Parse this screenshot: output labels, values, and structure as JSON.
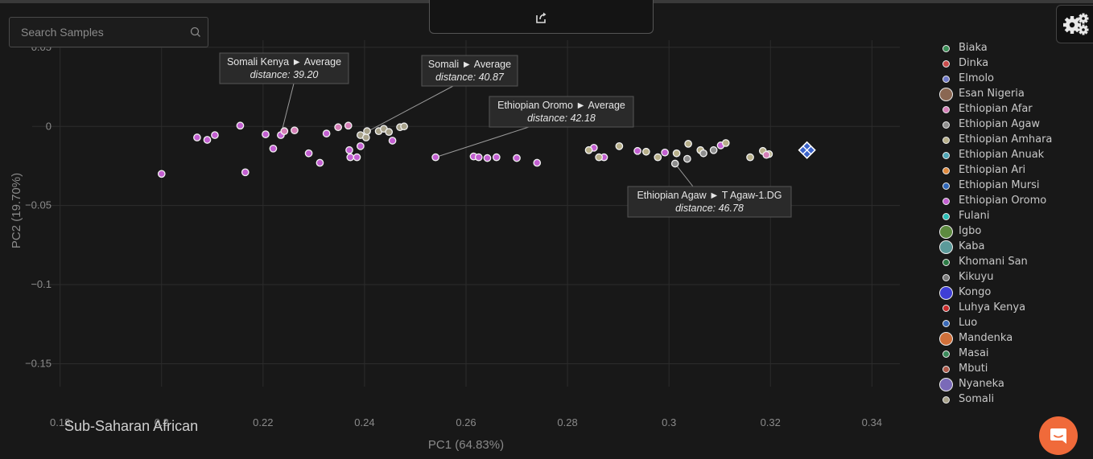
{
  "search": {
    "placeholder": "Search Samples"
  },
  "region_label": "Sub-Saharan African",
  "colors": {
    "background": "#181818",
    "grid": "#2c2c2c",
    "chat_button": "#f06a3a",
    "target_marker": "#3b63c9"
  },
  "chart_data": {
    "type": "scatter",
    "xlabel": "PC1 (64.83%)",
    "ylabel": "PC2 (19.70%)",
    "xlim": [
      0.1745,
      0.3455
    ],
    "ylim": [
      -0.1645,
      0.0545
    ],
    "x_ticks": [
      {
        "v": 0.18,
        "label": "0.18"
      },
      {
        "v": 0.2,
        "label": "0.2"
      },
      {
        "v": 0.22,
        "label": "0.22"
      },
      {
        "v": 0.24,
        "label": "0.24"
      },
      {
        "v": 0.26,
        "label": "0.26"
      },
      {
        "v": 0.28,
        "label": "0.28"
      },
      {
        "v": 0.3,
        "label": "0.3"
      },
      {
        "v": 0.32,
        "label": "0.32"
      },
      {
        "v": 0.34,
        "label": "0.34"
      }
    ],
    "y_ticks": [
      {
        "v": 0.05,
        "label": "0.05"
      },
      {
        "v": 0,
        "label": "0"
      },
      {
        "v": -0.05,
        "label": "−0.05"
      },
      {
        "v": -0.1,
        "label": "−0.1"
      },
      {
        "v": -0.15,
        "label": "−0.15"
      }
    ],
    "grid": true,
    "legend_position": "right",
    "series": [
      {
        "name": "Ethiopian Oromo",
        "color": "#c35fd1",
        "points": [
          [
            0.2,
            -0.03
          ],
          [
            0.207,
            -0.007
          ],
          [
            0.209,
            -0.0085
          ],
          [
            0.2105,
            -0.0055
          ],
          [
            0.2155,
            0.0005
          ],
          [
            0.2165,
            -0.029
          ],
          [
            0.2205,
            -0.005
          ],
          [
            0.222,
            -0.014
          ],
          [
            0.2235,
            -0.0055
          ],
          [
            0.229,
            -0.017
          ],
          [
            0.2312,
            -0.023
          ],
          [
            0.2325,
            -0.0045
          ],
          [
            0.237,
            -0.015
          ],
          [
            0.2372,
            -0.0195
          ],
          [
            0.2385,
            -0.0195
          ],
          [
            0.2392,
            -0.0125
          ],
          [
            0.2455,
            -0.009
          ],
          [
            0.254,
            -0.0195
          ],
          [
            0.2615,
            -0.019
          ],
          [
            0.2625,
            -0.0195
          ],
          [
            0.2642,
            -0.02
          ],
          [
            0.266,
            -0.0195
          ],
          [
            0.27,
            -0.02
          ],
          [
            0.274,
            -0.023
          ],
          [
            0.2852,
            -0.0135
          ],
          [
            0.2872,
            -0.0195
          ],
          [
            0.2938,
            -0.0155
          ],
          [
            0.2992,
            -0.0165
          ],
          [
            0.3102,
            -0.012
          ]
        ]
      },
      {
        "name": "Somali",
        "color": "#a8a28a",
        "points": [
          [
            0.2392,
            -0.0055
          ],
          [
            0.2403,
            -0.007
          ],
          [
            0.2405,
            -0.003
          ],
          [
            0.2428,
            -0.003
          ],
          [
            0.2438,
            -0.0015
          ],
          [
            0.2448,
            -0.0035
          ],
          [
            0.247,
            -0.0005
          ],
          [
            0.2478,
            0
          ]
        ]
      },
      {
        "name": "Ethiopian Amhara",
        "color": "#b8b08a",
        "points": [
          [
            0.2842,
            -0.015
          ],
          [
            0.2902,
            -0.0125
          ],
          [
            0.2955,
            -0.016
          ],
          [
            0.2978,
            -0.0195
          ],
          [
            0.3038,
            -0.011
          ],
          [
            0.3062,
            -0.015
          ],
          [
            0.3112,
            -0.0105
          ],
          [
            0.3185,
            -0.0155
          ],
          [
            0.3197,
            -0.0175
          ],
          [
            0.316,
            -0.0195
          ],
          [
            0.2862,
            -0.0195
          ],
          [
            0.3015,
            -0.017
          ]
        ]
      },
      {
        "name": "Ethiopian Agaw",
        "color": "#8e8e8e",
        "points": [
          [
            0.3012,
            -0.0235
          ],
          [
            0.3036,
            -0.0205
          ],
          [
            0.3068,
            -0.017
          ],
          [
            0.3088,
            -0.015
          ]
        ]
      },
      {
        "name": "Ethiopian Afar",
        "color": "#d67fb8",
        "points": [
          [
            0.2242,
            -0.003
          ],
          [
            0.2262,
            -0.0025
          ],
          [
            0.2348,
            -0.0005
          ],
          [
            0.2368,
            0.0005
          ],
          [
            0.3192,
            -0.018
          ]
        ]
      }
    ],
    "target": {
      "x": 0.3272,
      "y": -0.015
    },
    "annotations": [
      {
        "title": "Somali Kenya ► Average",
        "distance": "distance: 39.20",
        "ax": 0.2235,
        "ay": -0.0055
      },
      {
        "title": "Somali ► Average",
        "distance": "distance: 40.87",
        "ax": 0.241,
        "ay": -0.0025
      },
      {
        "title": "Ethiopian Oromo ► Average",
        "distance": "distance: 42.18",
        "ax": 0.254,
        "ay": -0.0195
      },
      {
        "title": "Ethiopian Agaw ► T Agaw-1.DG",
        "distance": "distance: 46.78",
        "ax": 0.3012,
        "ay": -0.0235
      }
    ]
  },
  "legend": [
    {
      "label": "Biaka",
      "color": "#3c8f58",
      "size": 9
    },
    {
      "label": "Dinka",
      "color": "#c94b4b",
      "size": 9
    },
    {
      "label": "Elmolo",
      "color": "#6f79c8",
      "size": 9
    },
    {
      "label": "Esan Nigeria",
      "color": "#8a6752",
      "size": 17
    },
    {
      "label": "Ethiopian Afar",
      "color": "#d67fb8",
      "size": 9
    },
    {
      "label": "Ethiopian Agaw",
      "color": "#8e8e8e",
      "size": 9
    },
    {
      "label": "Ethiopian Amhara",
      "color": "#b8b08a",
      "size": 9
    },
    {
      "label": "Ethiopian Anuak",
      "color": "#4fa6b6",
      "size": 9
    },
    {
      "label": "Ethiopian Ari",
      "color": "#e08a3e",
      "size": 9
    },
    {
      "label": "Ethiopian Mursi",
      "color": "#2e66b8",
      "size": 9
    },
    {
      "label": "Ethiopian Oromo",
      "color": "#c35fd1",
      "size": 9
    },
    {
      "label": "Fulani",
      "color": "#2bbdb5",
      "size": 9
    },
    {
      "label": "Igbo",
      "color": "#5d8a3f",
      "size": 17
    },
    {
      "label": "Kaba",
      "color": "#5b9a9a",
      "size": 17
    },
    {
      "label": "Khomani San",
      "color": "#2d7a45",
      "size": 9
    },
    {
      "label": "Kikuyu",
      "color": "#7a7a7a",
      "size": 9
    },
    {
      "label": "Kongo",
      "color": "#3e3ed6",
      "size": 17
    },
    {
      "label": "Luhya Kenya",
      "color": "#c92b2b",
      "size": 9
    },
    {
      "label": "Luo",
      "color": "#3a6ab8",
      "size": 9
    },
    {
      "label": "Mandenka",
      "color": "#d0703a",
      "size": 17
    },
    {
      "label": "Masai",
      "color": "#3a8a5a",
      "size": 9
    },
    {
      "label": "Mbuti",
      "color": "#b05a4a",
      "size": 9
    },
    {
      "label": "Nyaneka",
      "color": "#7a6ab8",
      "size": 17
    },
    {
      "label": "Somali",
      "color": "#a8a28a",
      "size": 9
    }
  ]
}
